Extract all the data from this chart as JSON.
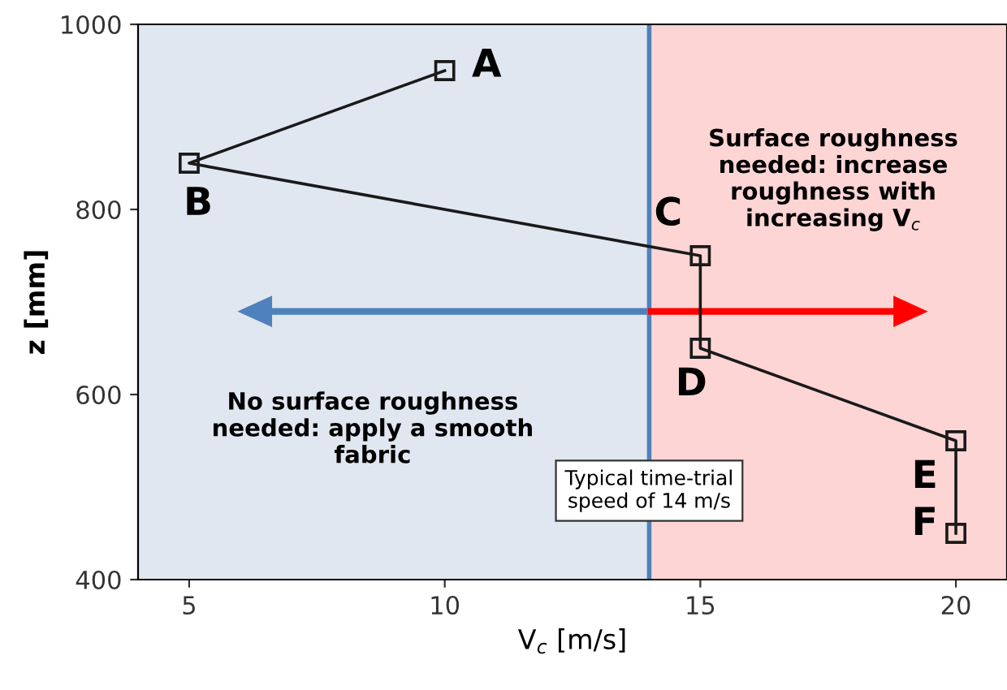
{
  "chart_data": {
    "type": "line",
    "xlabel": "V$_{c}$ [m/s]",
    "ylabel": "z [mm]",
    "x": [
      10,
      5,
      15,
      15,
      20,
      20
    ],
    "series": [
      {
        "color": "#1a1a1a",
        "values": [
          950,
          850,
          750,
          650,
          550,
          450
        ]
      }
    ],
    "marker": "square",
    "line_style": "solid",
    "grid": false,
    "xlim": [
      4,
      21
    ],
    "ylim": [
      400,
      1000
    ],
    "xticks": [
      5,
      10,
      15,
      20
    ],
    "yticks": [
      400,
      600,
      800,
      1000
    ],
    "ref_lines": [
      {
        "axis": "x",
        "value": 14,
        "label": "Typical time-trial\nspeed of 14 m/s",
        "color": "#4f81bd",
        "line_style": "solid"
      }
    ],
    "bands": [
      {
        "axis": "x",
        "from": 4,
        "to": 14,
        "color": "#e1e7f0"
      },
      {
        "axis": "x",
        "from": 14,
        "to": 21,
        "color": "#fdd5d5"
      }
    ],
    "annotations": [
      {
        "text": "A",
        "x": 10,
        "y": 950
      },
      {
        "text": "B",
        "x": 5,
        "y": 850
      },
      {
        "text": "C",
        "x": 15,
        "y": 750
      },
      {
        "text": "D",
        "x": 15,
        "y": 650
      },
      {
        "text": "E",
        "x": 20,
        "y": 550
      },
      {
        "text": "F",
        "x": 20,
        "y": 450
      },
      "Surface roughness\nneeded: increase\nroughness with\nincreasing V$_{c}$",
      "No surface roughness\nneeded: apply a smooth\nfabric"
    ]
  }
}
